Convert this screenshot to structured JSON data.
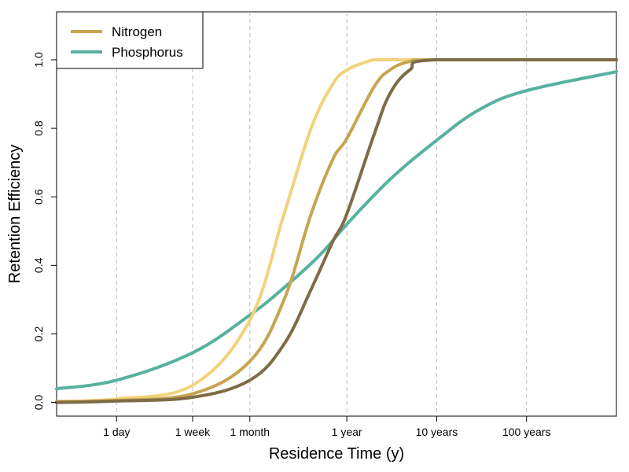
{
  "chart_data": {
    "type": "line",
    "title": "",
    "xlabel": "Residence Time (y)",
    "ylabel": "Retention Efficiency",
    "x_scale": "log10",
    "x_range_years": [
      0.000589,
      1000
    ],
    "x_ticks": [
      {
        "label": "1 day",
        "value": 0.00274
      },
      {
        "label": "1 week",
        "value": 0.0192
      },
      {
        "label": "1 month",
        "value": 0.0833
      },
      {
        "label": "1 year",
        "value": 1
      },
      {
        "label": "10 years",
        "value": 10
      },
      {
        "label": "100 years",
        "value": 100
      }
    ],
    "ylim": [
      -0.04,
      1.14
    ],
    "y_ticks": [
      "0.0",
      "0.2",
      "0.4",
      "0.6",
      "0.8",
      "1.0"
    ],
    "grid": "vertical dashed at x ticks",
    "legend": {
      "placement": "top-left",
      "entries": [
        {
          "label": "Nitrogen",
          "color": "#c7a450"
        },
        {
          "label": "Phosphorus",
          "color": "#56b29f"
        }
      ]
    },
    "series": [
      {
        "legend": "Nitrogen",
        "color": "#f2d27c",
        "x": [
          0.000589,
          0.00274,
          0.0192,
          0.0833,
          0.2,
          0.4,
          0.7,
          1,
          1.5,
          2,
          3,
          10,
          1000
        ],
        "y": [
          0.003,
          0.01,
          0.05,
          0.24,
          0.55,
          0.8,
          0.93,
          0.97,
          0.99,
          1.0,
          1.0,
          1.0,
          1.0
        ]
      },
      {
        "legend": "Nitrogen",
        "color": "#c7a450",
        "x": [
          0.000589,
          0.00274,
          0.0192,
          0.0833,
          0.2,
          0.4,
          0.7,
          1,
          2,
          3,
          5,
          10,
          1000
        ],
        "y": [
          0.002,
          0.006,
          0.025,
          0.12,
          0.3,
          0.55,
          0.71,
          0.77,
          0.92,
          0.97,
          0.995,
          1.0,
          1.0
        ]
      },
      {
        "legend": "Nitrogen",
        "color": "#7f6b45",
        "x": [
          0.000589,
          0.00274,
          0.0192,
          0.0833,
          0.2,
          0.4,
          0.7,
          1,
          2,
          3,
          5,
          10,
          1000
        ],
        "y": [
          0.0,
          0.004,
          0.015,
          0.065,
          0.17,
          0.33,
          0.47,
          0.55,
          0.78,
          0.9,
          0.97,
          1.0,
          1.0
        ]
      },
      {
        "legend": "Phosphorus",
        "color": "#56b29f",
        "x": [
          0.000589,
          0.00274,
          0.0192,
          0.0833,
          0.2,
          0.5,
          1,
          3,
          10,
          30,
          100,
          1000
        ],
        "y": [
          0.04,
          0.065,
          0.145,
          0.255,
          0.335,
          0.43,
          0.52,
          0.65,
          0.765,
          0.855,
          0.91,
          0.965
        ]
      }
    ]
  }
}
